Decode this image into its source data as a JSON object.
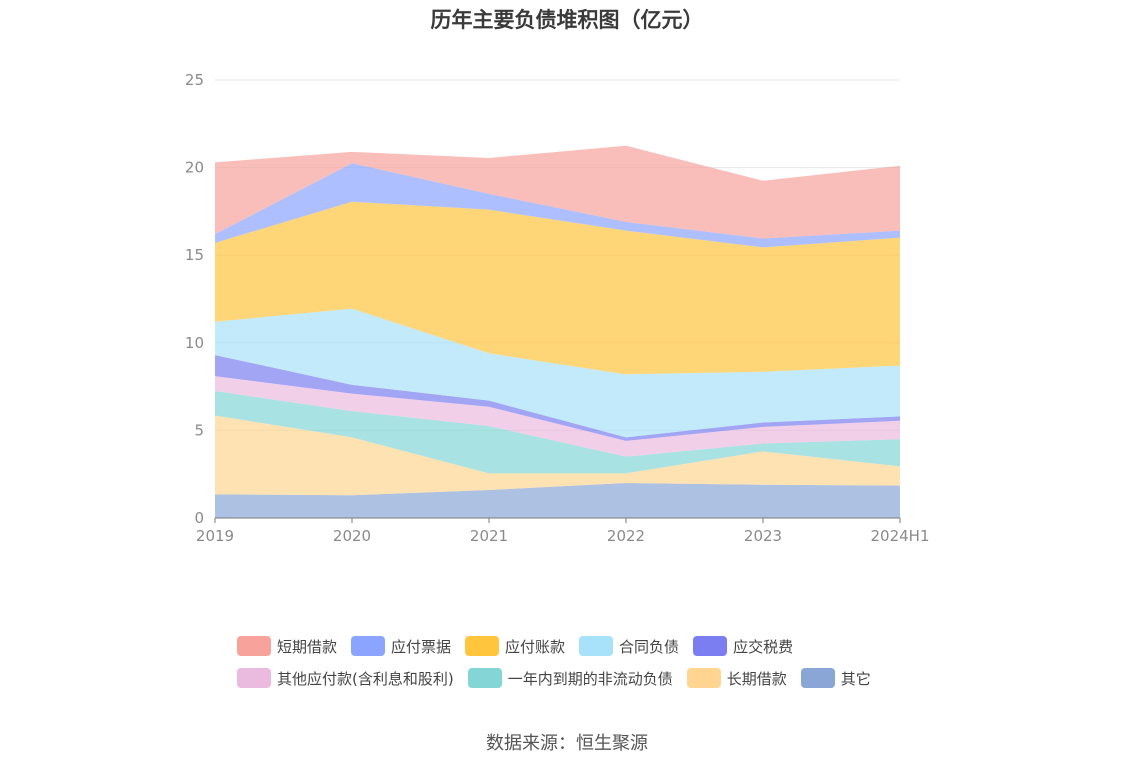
{
  "chart_data": {
    "type": "area",
    "stacked": true,
    "title": "历年主要负债堆积图（亿元）",
    "x": [
      "2019",
      "2020",
      "2021",
      "2022",
      "2023",
      "2024H1"
    ],
    "ylim": [
      0,
      25
    ],
    "yticks": [
      0,
      5,
      10,
      15,
      20,
      25
    ],
    "grid": true,
    "legend_position": "bottom",
    "series": [
      {
        "name": "其它",
        "color": "#8aa6d6",
        "values": [
          1.35,
          1.3,
          1.6,
          2.0,
          1.9,
          1.85
        ]
      },
      {
        "name": "长期借款",
        "color": "#ffd591",
        "values": [
          4.5,
          3.3,
          0.95,
          0.55,
          1.9,
          1.1
        ]
      },
      {
        "name": "一年内到期的非流动负债",
        "color": "#84d6d6",
        "values": [
          1.4,
          1.5,
          2.7,
          0.95,
          0.45,
          1.55
        ]
      },
      {
        "name": "其他应付款(含利息和股利)",
        "color": "#ebbbdf",
        "values": [
          0.85,
          1.0,
          1.1,
          0.9,
          0.95,
          1.05
        ]
      },
      {
        "name": "应交税费",
        "color": "#7b7ef0",
        "values": [
          1.2,
          0.5,
          0.35,
          0.2,
          0.25,
          0.25
        ]
      },
      {
        "name": "合同负债",
        "color": "#a8e1fa",
        "values": [
          1.9,
          4.35,
          2.7,
          3.6,
          2.9,
          2.9
        ]
      },
      {
        "name": "应付账款",
        "color": "#ffc53d",
        "values": [
          4.5,
          6.1,
          8.2,
          8.2,
          7.1,
          7.3
        ]
      },
      {
        "name": "应付票据",
        "color": "#8aa4ff",
        "values": [
          0.5,
          2.2,
          0.9,
          0.5,
          0.5,
          0.4
        ]
      },
      {
        "name": "短期借款",
        "color": "#f7a39c",
        "values": [
          4.1,
          0.65,
          2.05,
          4.35,
          3.3,
          3.7
        ]
      }
    ],
    "legend_order": [
      "短期借款",
      "应付票据",
      "应付账款",
      "合同负债",
      "应交税费",
      "其他应付款(含利息和股利)",
      "一年内到期的非流动负债",
      "长期借款",
      "其它"
    ]
  },
  "source_note": "数据来源：恒生聚源"
}
